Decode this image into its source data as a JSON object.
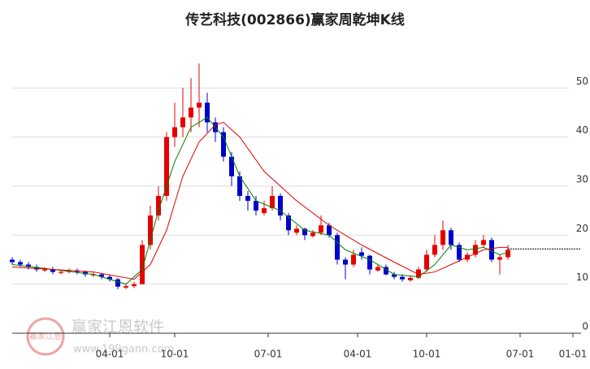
{
  "chart_data": {
    "type": "candlestick",
    "title": "传艺科技(002866)赢家周乾坤K线",
    "watermark": "赢家江恩软件",
    "watermark_url": "www.199gann.com",
    "watermark_badge": "赢家江恩",
    "up_color": "#e60000",
    "down_color": "#0000cc",
    "grid": true,
    "ylim": [
      0,
      58
    ],
    "yticks": [
      0,
      10,
      20,
      30,
      40,
      50
    ],
    "xlim": [
      0,
      140
    ],
    "xticks": [
      {
        "value": 24,
        "label": "04-01"
      },
      {
        "value": 40,
        "label": "10-01"
      },
      {
        "value": 63,
        "label": "07-01"
      },
      {
        "value": 85,
        "label": "04-01"
      },
      {
        "value": 102,
        "label": "10-01"
      },
      {
        "value": 125,
        "label": "07-01"
      },
      {
        "value": 138,
        "label": "01-01"
      }
    ],
    "x": [
      0,
      2,
      4,
      6,
      8,
      10,
      12,
      14,
      16,
      18,
      20,
      22,
      24,
      26,
      28,
      30,
      32,
      34,
      36,
      38,
      40,
      42,
      44,
      46,
      48,
      50,
      52,
      54,
      56,
      58,
      60,
      62,
      64,
      66,
      68,
      70,
      72,
      74,
      76,
      78,
      80,
      82,
      84,
      86,
      88,
      90,
      92,
      94,
      96,
      98,
      100,
      102,
      104,
      106,
      108,
      110,
      112,
      114,
      116,
      118,
      120,
      122
    ],
    "open": [
      15,
      14.5,
      14,
      13.5,
      12.8,
      13,
      12.3,
      12.5,
      12.8,
      12.5,
      11.8,
      12,
      11.5,
      11,
      9.3,
      9.6,
      10,
      18,
      24,
      28,
      40,
      42,
      44,
      46,
      47,
      43,
      41,
      36,
      32,
      28,
      27,
      24.5,
      25.5,
      28,
      24,
      20.5,
      21.3,
      19.8,
      20.5,
      22,
      20,
      15,
      14,
      16.5,
      15.8,
      12.8,
      13.5,
      12,
      11.5,
      10.8,
      11.3,
      13,
      16,
      18,
      21,
      18,
      15,
      16,
      18,
      19,
      15,
      15.5
    ],
    "high": [
      15.5,
      15,
      14.5,
      14,
      13.5,
      13.5,
      13,
      13.2,
      13.2,
      12.8,
      12.5,
      12.3,
      12,
      11.3,
      10,
      10.5,
      19,
      26,
      30,
      41,
      47,
      50,
      52,
      55,
      49,
      44,
      42,
      37,
      33,
      29,
      28,
      27,
      30,
      28.5,
      24.5,
      22,
      21.5,
      21,
      24,
      22.5,
      20.5,
      15.5,
      17,
      17.5,
      16,
      14,
      14,
      12.5,
      12,
      11.8,
      13.5,
      17,
      20,
      23,
      21.5,
      18.5,
      16.5,
      19,
      20,
      19.5,
      16,
      18
    ],
    "low": [
      14,
      13.5,
      13,
      12.5,
      12.5,
      12,
      12,
      12.2,
      12,
      11.5,
      11.5,
      11,
      10.5,
      9,
      9,
      9.2,
      10,
      17,
      23,
      27,
      38,
      40,
      41,
      42,
      41,
      39,
      35,
      30,
      27,
      25,
      24,
      24,
      25,
      23,
      20,
      20,
      19,
      19.5,
      20,
      19.5,
      14,
      11,
      13.5,
      15,
      12,
      12.5,
      11.8,
      11,
      10.5,
      10.5,
      11,
      12.5,
      15.5,
      17,
      17,
      14.5,
      14.5,
      15.5,
      17.5,
      14.5,
      12,
      15
    ],
    "close": [
      14.5,
      14,
      13.5,
      13,
      13,
      12.5,
      12.5,
      12.8,
      12.5,
      12,
      12,
      11.5,
      11,
      9.5,
      9.6,
      10,
      18,
      24,
      28,
      40,
      42,
      44,
      46,
      47,
      43,
      41,
      36,
      32,
      28,
      27,
      25,
      25.5,
      28,
      24,
      21,
      21.3,
      20,
      20.5,
      22,
      20,
      15,
      14,
      16,
      15.8,
      13,
      13.5,
      12,
      11.5,
      11,
      11.3,
      13,
      16,
      18,
      21,
      18,
      15,
      16,
      18,
      19,
      15,
      15.5,
      17
    ],
    "lines": [
      {
        "color": "#008000",
        "x": [
          0,
          10,
          20,
          28,
          32,
          36,
          40,
          44,
          48,
          52,
          56,
          60,
          66,
          72,
          78,
          82,
          88,
          94,
          100,
          104,
          108,
          112,
          116,
          120,
          122
        ],
        "values": [
          14,
          13,
          12,
          10,
          13,
          25,
          35,
          42,
          44,
          40,
          32,
          27,
          25,
          21,
          20,
          17,
          15,
          12,
          11.5,
          14,
          18,
          17,
          17.5,
          16,
          16.5
        ]
      },
      {
        "color": "#e60000",
        "x": [
          0,
          10,
          20,
          30,
          34,
          38,
          42,
          46,
          50,
          52,
          56,
          62,
          70,
          78,
          86,
          94,
          100,
          104,
          108,
          112,
          116,
          120,
          122
        ],
        "values": [
          13.5,
          13,
          12.5,
          11,
          14,
          21,
          32,
          39,
          42.5,
          43,
          40,
          33,
          27,
          22,
          18,
          14.5,
          12,
          12.5,
          14,
          15.5,
          17,
          17.5,
          17.5
        ]
      }
    ],
    "last_price": 17.2
  }
}
